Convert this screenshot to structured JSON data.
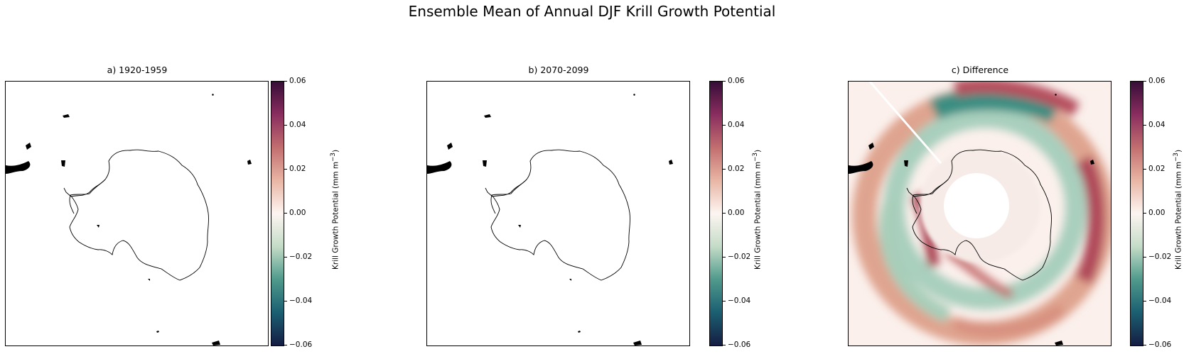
{
  "figure": {
    "title": "Ensemble Mean of Annual DJF Krill Growth Potential"
  },
  "panels": [
    {
      "title": "a) 1920-1959",
      "shows_difference": false
    },
    {
      "title": "b) 2070-2099",
      "shows_difference": false
    },
    {
      "title": "c) Difference",
      "shows_difference": true
    }
  ],
  "colorbar": {
    "label": "Krill Growth Potential (mm m",
    "label_exponent": "−3",
    "label_suffix": ")",
    "range": [
      -0.06,
      0.06
    ],
    "ticks": [
      "0.06",
      "0.04",
      "0.02",
      "0.00",
      "−0.02",
      "−0.04",
      "−0.06"
    ],
    "colormap": "curl",
    "colors": [
      "#151d44",
      "#1f7a7a",
      "#cfe3d3",
      "#fdf5f2",
      "#e3a28f",
      "#b54b5e",
      "#360e37"
    ]
  },
  "map": {
    "projection": "south-polar-stereographic",
    "coastline_color": "#000000",
    "difference_colors": {
      "strong_positive": "#b04a5a",
      "positive": "#dfa090",
      "neutral": "#fbf0ec",
      "negative": "#bcd8c8",
      "strong_negative": "#2f8a80"
    }
  }
}
